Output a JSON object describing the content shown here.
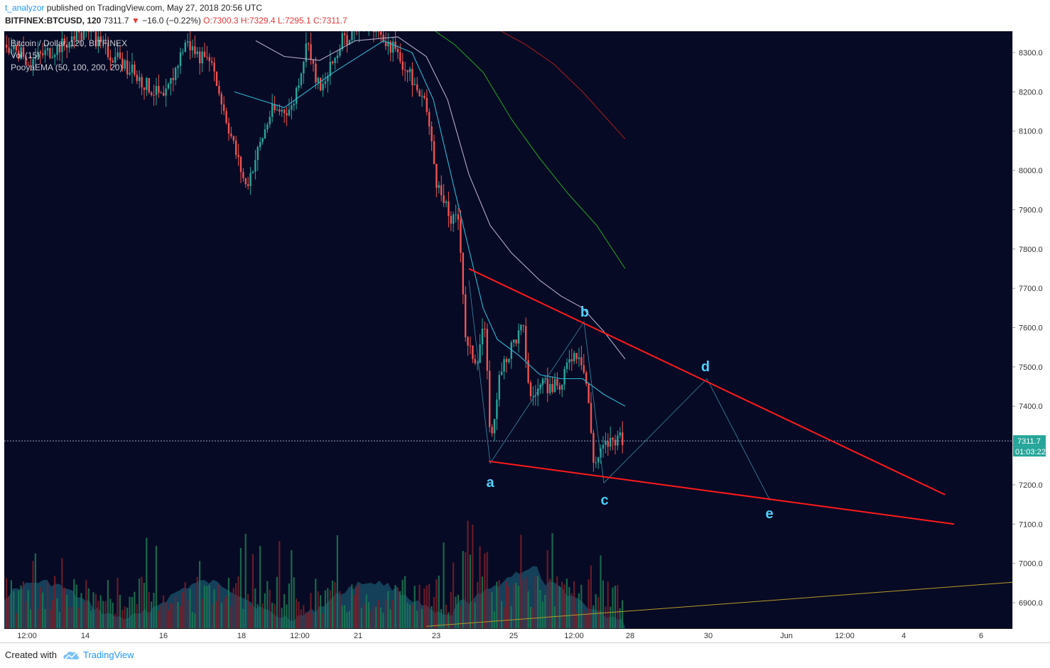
{
  "header": {
    "user": "t_analyzor",
    "published": "published on TradingView.com, May 27, 2018 20:56 UTC",
    "symbol": "BITFINEX:BTCUSD, 120",
    "last": "7311.7",
    "change": "−16.0 (−0.22%)",
    "open": "O:7300.3",
    "high": "H:7329.4",
    "low": "L:7295.1",
    "close": "C:7311.7"
  },
  "legend": {
    "title": "Bitcoin / Dollar, 120, BITFINEX",
    "volume": "Vol (15)",
    "ema": "PooyaEMA (50, 100, 200, 20)"
  },
  "footer": {
    "created": "Created with",
    "brand": "TradingView"
  },
  "colors": {
    "background": "#070a24",
    "up": "#26a69a",
    "down": "#ef5350",
    "trendline": "#ff1a1a",
    "wave_label": "#4dd0ff",
    "ema20": "#2ab7d6",
    "ema50": "#b3a9cc",
    "ema100": "#1f9b1f",
    "ema200": "#9b1c1c"
  },
  "chart_data": {
    "type": "candlestick",
    "y_axis": {
      "ticks": [
        "8300.0",
        "8200.0",
        "8100.0",
        "8000.0",
        "7900.0",
        "7800.0",
        "7700.0",
        "7600.0",
        "7500.0",
        "7400.0",
        "7300.0",
        "7200.0",
        "7100.0",
        "7000.0",
        "6900.0"
      ],
      "range": [
        6820,
        8340
      ]
    },
    "x_axis": {
      "ticks": [
        "12:00",
        "14",
        "16",
        "18",
        "12:00",
        "21",
        "23",
        "25",
        "12:00",
        "28",
        "30",
        "Jun",
        "12:00",
        "4",
        "6"
      ]
    },
    "last_price_label": "7311.7",
    "countdown_label": "01:03:22",
    "wave_labels": [
      "a",
      "b",
      "c",
      "d",
      "e"
    ],
    "triangle_upper_line": {
      "from": [
        "May 23",
        7750
      ],
      "to": [
        "Jun 5",
        7175
      ]
    },
    "triangle_lower_line": {
      "from": [
        "May 24",
        7260
      ],
      "to": [
        "Jun 5",
        7100
      ]
    },
    "wave_path": [
      {
        "label": "a",
        "price": 7255
      },
      {
        "label": "b",
        "price": 7615
      },
      {
        "label": "c",
        "price": 7205
      },
      {
        "label": "d",
        "price": 7470
      },
      {
        "label": "e",
        "price": 7160
      }
    ],
    "ema_series": [
      {
        "name": "20",
        "end_price": 7400
      },
      {
        "name": "50",
        "end_price": 7520
      },
      {
        "name": "100",
        "end_price": 7750
      },
      {
        "name": "200",
        "end_price": 8080
      }
    ]
  }
}
